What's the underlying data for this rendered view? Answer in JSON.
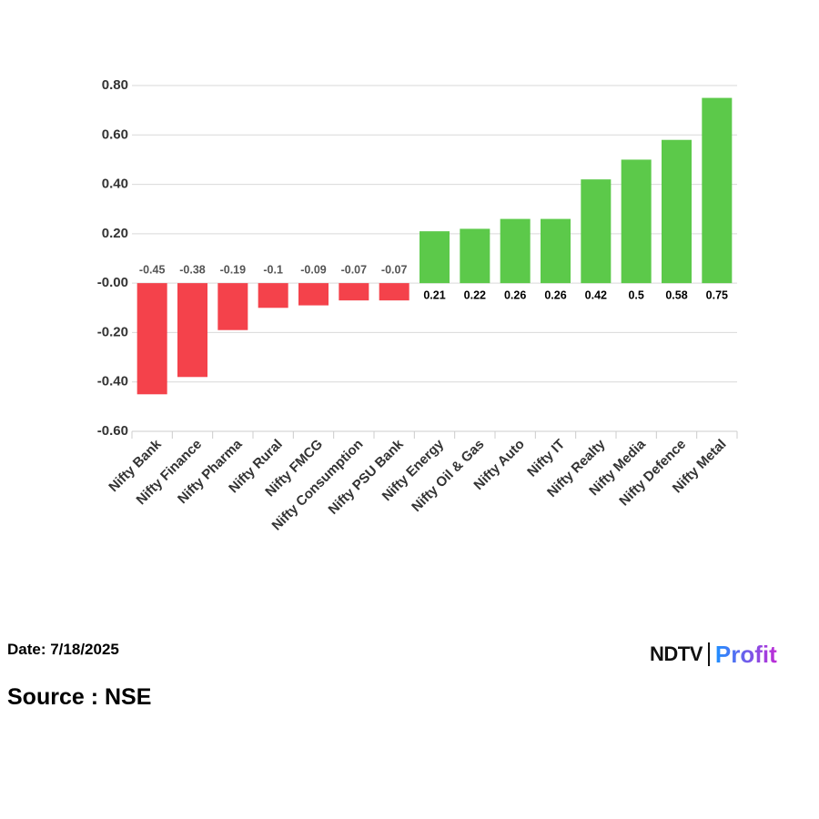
{
  "chart_data": {
    "type": "bar",
    "categories": [
      "Nifty Bank",
      "Nifty Finance",
      "Nifty Pharma",
      "Nifty Rural",
      "Nifty FMCG",
      "Nifty Consumption",
      "Nifty PSU Bank",
      "Nifty Energy",
      "Nifty Oil & Gas",
      "Nifty Auto",
      "Nifty IT",
      "Nifty Realty",
      "Nifty Media",
      "Nifty Defence",
      "Nifty Metal"
    ],
    "values": [
      -0.45,
      -0.38,
      -0.19,
      -0.1,
      -0.09,
      -0.07,
      -0.07,
      0.21,
      0.22,
      0.26,
      0.26,
      0.42,
      0.5,
      0.58,
      0.75
    ],
    "colors": {
      "negative": "#f4424b",
      "positive": "#5cc94a"
    },
    "ylim": [
      -0.6,
      0.8
    ],
    "yticks": [
      {
        "value": 0.8,
        "label": "0.80"
      },
      {
        "value": 0.6,
        "label": "0.60"
      },
      {
        "value": 0.4,
        "label": "0.40"
      },
      {
        "value": 0.2,
        "label": "0.20"
      },
      {
        "value": 0,
        "label": "-0.00"
      },
      {
        "value": -0.2,
        "label": "-0.20"
      },
      {
        "value": -0.4,
        "label": "-0.40"
      },
      {
        "value": -0.6,
        "label": "-0.60"
      }
    ],
    "grid": true
  },
  "footer": {
    "date": "Date: 7/18/2025",
    "source": "Source : NSE"
  },
  "logo": {
    "ndtv": "NDTV",
    "profit": "Profit"
  }
}
